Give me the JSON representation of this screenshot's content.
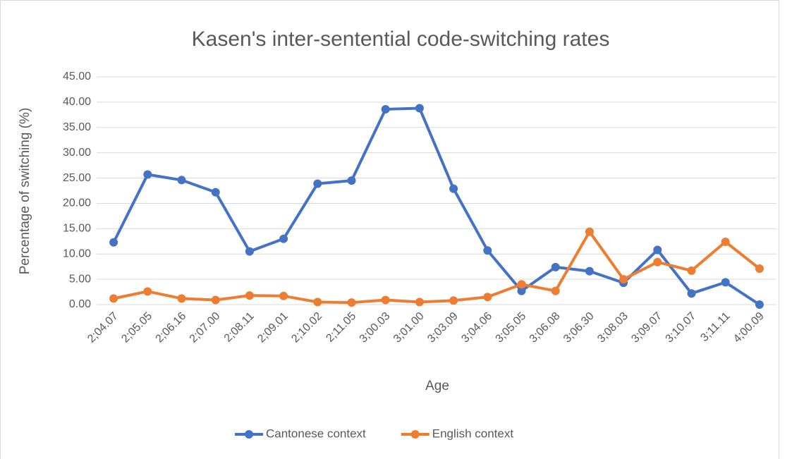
{
  "chart_data": {
    "type": "line",
    "title": "Kasen's inter-sentential code-switching rates",
    "x_label": "Age",
    "y_label": "Percentage of switching (%)",
    "categories": [
      "2;04.07",
      "2;05.05",
      "2;06.16",
      "2;07.00",
      "2;08.11",
      "2;09.01",
      "2;10.02",
      "2;11.05",
      "3;00.03",
      "3;01.00",
      "3;03.09",
      "3;04.06",
      "3;05.05",
      "3;06.08",
      "3;06.30",
      "3;08.03",
      "3;09.07",
      "3;10.07",
      "3;11.11",
      "4;00.09"
    ],
    "series": [
      {
        "name": "Cantonese context",
        "color": "#4472c4",
        "values": [
          12.3,
          25.7,
          24.6,
          22.2,
          10.5,
          13.0,
          23.9,
          24.5,
          38.6,
          38.8,
          22.9,
          10.7,
          2.7,
          7.4,
          6.6,
          4.3,
          10.8,
          2.2,
          4.4,
          0.0
        ]
      },
      {
        "name": "English context",
        "color": "#ed7d31",
        "values": [
          1.2,
          2.6,
          1.2,
          0.9,
          1.8,
          1.7,
          0.5,
          0.4,
          0.9,
          0.5,
          0.8,
          1.5,
          4.0,
          2.7,
          14.4,
          5.0,
          8.4,
          6.7,
          12.4,
          7.1
        ]
      }
    ],
    "ylim": [
      0,
      45
    ],
    "yticks": [
      {
        "value": 0,
        "label": "0.00"
      },
      {
        "value": 5,
        "label": "5.00"
      },
      {
        "value": 10,
        "label": "10.00"
      },
      {
        "value": 15,
        "label": "15.00"
      },
      {
        "value": 20,
        "label": "20.00"
      },
      {
        "value": 25,
        "label": "25.00"
      },
      {
        "value": 30,
        "label": "30.00"
      },
      {
        "value": 35,
        "label": "35.00"
      },
      {
        "value": 40,
        "label": "40.00"
      },
      {
        "value": 45,
        "label": "45.00"
      }
    ],
    "grid": true,
    "legend": "bottom"
  }
}
